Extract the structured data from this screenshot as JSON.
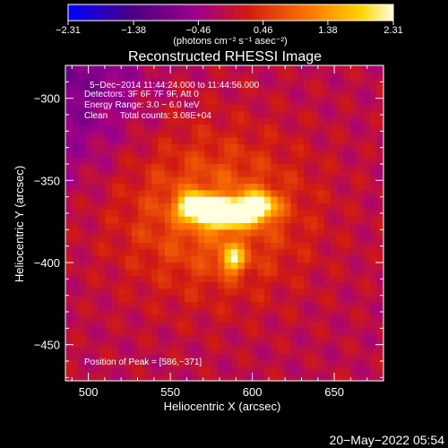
{
  "chart_data": {
    "type": "heatmap",
    "title": "Reconstructed RHESSI Image",
    "xlabel": "Heliocentric X (arcsec)",
    "ylabel": "Heliocentric Y (arcsec)",
    "xlim": [
      486,
      680
    ],
    "ylim": [
      -472,
      -280
    ],
    "xticks": [
      500,
      550,
      600,
      650
    ],
    "xtick_labels": [
      "500",
      "550",
      "600",
      "650"
    ],
    "yticks": [
      -300,
      -350,
      -400,
      -450
    ],
    "ytick_labels": [
      "−300",
      "−350",
      "−400",
      "−450"
    ],
    "colorbar": {
      "min": -2.31,
      "max": 2.31,
      "tick_values": [
        -2.31,
        -1.38,
        -0.46,
        0.46,
        1.38,
        2.31
      ],
      "tick_labels": [
        "−2.31",
        "−1.38",
        "−0.46",
        "0.46",
        "1.38",
        "2.31"
      ],
      "unit_label": "(photons cm⁻² s⁻¹ asec⁻²)",
      "colormap": "sun"
    },
    "annotations": [
      "5−Dec−2014 11:44:24.000 to 11:44:56.000",
      "Detectors: 3F 6F 7F 9F, Att 0",
      "Energy Range: 3.0 − 6.0 keV",
      "Clean     Total counts: 3.08E+04"
    ],
    "peak_label": "Position of Peak = [586,−371]",
    "peak": [
      586,
      -371
    ],
    "sources": [
      {
        "x": 583,
        "y": -370,
        "sx": 9,
        "sy": 5,
        "amp": 1.0
      },
      {
        "x": 566,
        "y": -366,
        "sx": 7,
        "sy": 5,
        "amp": 0.65
      },
      {
        "x": 603,
        "y": -366,
        "sx": 8,
        "sy": 6,
        "amp": 0.5
      },
      {
        "x": 588,
        "y": -398,
        "sx": 5,
        "sy": 6,
        "amp": 0.35
      },
      {
        "x": 575,
        "y": -370,
        "sx": 40,
        "sy": 34,
        "amp": 0.22
      }
    ],
    "background_level": 0.48
  },
  "footer": {
    "timestamp": "20−May−2022 05:54"
  }
}
